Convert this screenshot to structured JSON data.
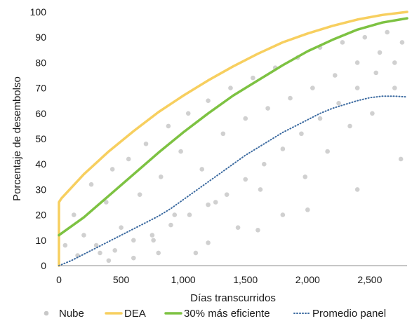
{
  "chart_data": {
    "type": "scatter",
    "xlabel": "Días transcurridos",
    "ylabel": "Porcentaje de desembolso",
    "xlim": [
      0,
      2800
    ],
    "ylim": [
      0,
      100
    ],
    "x_ticks": [
      0,
      500,
      1000,
      1500,
      2000,
      2500
    ],
    "x_tick_labels": [
      "0",
      "500",
      "1,000",
      "1,500",
      "2,000",
      "2,500"
    ],
    "y_ticks": [
      0,
      10,
      20,
      30,
      40,
      50,
      60,
      70,
      80,
      90,
      100
    ],
    "y_tick_labels": [
      "0",
      "10",
      "20",
      "30",
      "40",
      "50",
      "60",
      "70",
      "80",
      "90",
      "100"
    ],
    "grid": false,
    "legend_position": "bottom",
    "series": [
      {
        "name": "Nube",
        "kind": "points",
        "color": "#c8c8c8",
        "x": [
          50,
          120,
          200,
          260,
          330,
          380,
          430,
          500,
          560,
          600,
          650,
          700,
          760,
          820,
          880,
          930,
          980,
          1040,
          1100,
          1150,
          1200,
          1260,
          1320,
          1380,
          1440,
          1500,
          1560,
          1620,
          1680,
          1740,
          1800,
          1860,
          1920,
          1980,
          2040,
          2100,
          2160,
          2220,
          2280,
          2340,
          2400,
          2460,
          2520,
          2580,
          2640,
          2700,
          2760,
          150,
          300,
          450,
          600,
          750,
          900,
          1050,
          1200,
          1350,
          1500,
          1650,
          1800,
          1950,
          2100,
          2250,
          2400,
          2550,
          2700,
          400,
          800,
          1200,
          1600,
          2000,
          2400,
          2750
        ],
        "y": [
          8,
          20,
          12,
          32,
          5,
          25,
          38,
          15,
          42,
          3,
          28,
          48,
          10,
          35,
          55,
          20,
          45,
          60,
          5,
          38,
          65,
          25,
          52,
          70,
          15,
          58,
          74,
          30,
          62,
          78,
          20,
          66,
          82,
          35,
          70,
          86,
          45,
          75,
          88,
          55,
          80,
          90,
          60,
          84,
          92,
          70,
          88,
          4,
          8,
          6,
          10,
          12,
          16,
          20,
          24,
          28,
          34,
          40,
          46,
          52,
          58,
          64,
          70,
          76,
          80,
          2,
          5,
          9,
          14,
          22,
          30,
          42
        ]
      },
      {
        "name": "DEA",
        "kind": "line",
        "color": "#f7cf5f",
        "x": [
          0,
          0,
          20,
          200,
          400,
          600,
          800,
          1000,
          1200,
          1400,
          1600,
          1800,
          2000,
          2200,
          2400,
          2600,
          2800
        ],
        "y": [
          0,
          25,
          26.5,
          36,
          45,
          53,
          60.5,
          67,
          73,
          78.5,
          83.5,
          88,
          91.5,
          94.5,
          97,
          98.8,
          100
        ]
      },
      {
        "name": "30% más eficiente",
        "kind": "line",
        "color": "#7dc242",
        "x": [
          0,
          200,
          400,
          600,
          800,
          1000,
          1200,
          1400,
          1600,
          1800,
          2000,
          2200,
          2400,
          2600,
          2800
        ],
        "y": [
          12,
          19,
          27.5,
          36,
          44.5,
          52.5,
          60,
          67,
          73,
          79,
          84.5,
          89,
          93,
          95.8,
          97.5
        ]
      },
      {
        "name": "Promedio panel",
        "kind": "dotted",
        "color": "#3b6aa0",
        "x": [
          0,
          100,
          200,
          300,
          400,
          500,
          600,
          700,
          800,
          900,
          1000,
          1100,
          1200,
          1300,
          1400,
          1500,
          1600,
          1700,
          1800,
          1900,
          2000,
          2100,
          2200,
          2300,
          2400,
          2500,
          2600,
          2700,
          2800
        ],
        "y": [
          0,
          2,
          4.5,
          7,
          9.5,
          12,
          14.5,
          17,
          19.5,
          22.5,
          26,
          29.5,
          33,
          36.5,
          40,
          43.5,
          46.5,
          49.5,
          52.5,
          55,
          57.5,
          60,
          62,
          63.5,
          65,
          66.2,
          66.8,
          66.8,
          66.5
        ]
      }
    ]
  }
}
